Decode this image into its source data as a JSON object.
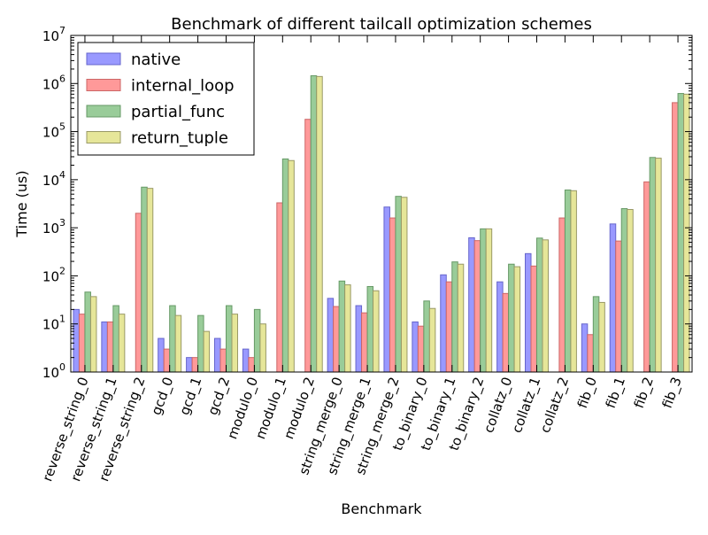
{
  "chart_data": {
    "type": "bar",
    "title": "Benchmark of different tailcall optimization schemes",
    "xlabel": "Benchmark",
    "ylabel": "Time (us)",
    "yscale": "log",
    "ylim": [
      1,
      10000000
    ],
    "y_ticks": [
      {
        "value": 1,
        "base": "10",
        "exp": "0"
      },
      {
        "value": 10,
        "base": "10",
        "exp": "1"
      },
      {
        "value": 100,
        "base": "10",
        "exp": "2"
      },
      {
        "value": 1000,
        "base": "10",
        "exp": "3"
      },
      {
        "value": 10000,
        "base": "10",
        "exp": "4"
      },
      {
        "value": 100000,
        "base": "10",
        "exp": "5"
      },
      {
        "value": 1000000,
        "base": "10",
        "exp": "6"
      },
      {
        "value": 10000000,
        "base": "10",
        "exp": "7"
      }
    ],
    "grid": false,
    "legend_position": "top-left",
    "categories": [
      "reverse_string_0",
      "reverse_string_1",
      "reverse_string_2",
      "gcd_0",
      "gcd_1",
      "gcd_2",
      "modulo_0",
      "modulo_1",
      "modulo_2",
      "string_merge_0",
      "string_merge_1",
      "string_merge_2",
      "to_binary_0",
      "to_binary_1",
      "to_binary_2",
      "collatz_0",
      "collatz_1",
      "collatz_2",
      "fib_0",
      "fib_1",
      "fib_2",
      "fib_3"
    ],
    "series": [
      {
        "name": "native",
        "color": "#9999ff",
        "edge": "#6666cc",
        "values": [
          20,
          11,
          null,
          5,
          2,
          5,
          3,
          null,
          null,
          34,
          24,
          2700,
          11,
          105,
          620,
          75,
          290,
          null,
          10,
          1200,
          null,
          null
        ]
      },
      {
        "name": "internal_loop",
        "color": "#ff9999",
        "edge": "#cc6666",
        "values": [
          16,
          11,
          2000,
          3,
          2,
          3,
          2,
          3300,
          180000,
          23,
          17,
          1600,
          9,
          75,
          540,
          43,
          160,
          1600,
          6,
          530,
          9000,
          400000
        ]
      },
      {
        "name": "partial_func",
        "color": "#99cc99",
        "edge": "#669966",
        "values": [
          46,
          24,
          7000,
          24,
          15,
          24,
          20,
          27000,
          1450000,
          78,
          60,
          4500,
          30,
          195,
          950,
          175,
          610,
          6100,
          37,
          2500,
          29000,
          620000
        ]
      },
      {
        "name": "return_tuple",
        "color": "#e6e699",
        "edge": "#999966",
        "values": [
          37,
          16,
          6600,
          15,
          7,
          16,
          10,
          25000,
          1400000,
          65,
          49,
          4300,
          21,
          175,
          950,
          155,
          560,
          5900,
          28,
          2400,
          28000,
          600000
        ]
      }
    ]
  }
}
